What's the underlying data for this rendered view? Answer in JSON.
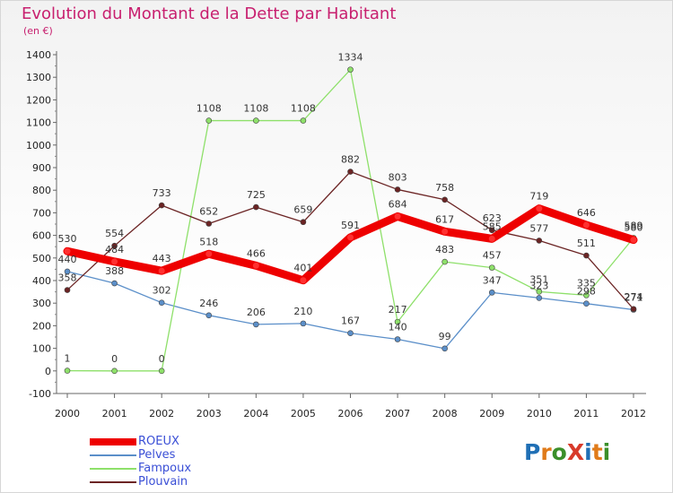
{
  "title": "Evolution du Montant de la Dette par Habitant",
  "subtitle": "(en €)",
  "logo_text": "ProXiti",
  "chart_data": {
    "type": "line",
    "title": "Evolution du Montant de la Dette par Habitant",
    "subtitle": "(en €)",
    "x": [
      "2000",
      "2001",
      "2002",
      "2003",
      "2004",
      "2005",
      "2006",
      "2007",
      "2008",
      "2009",
      "2010",
      "2011",
      "2012"
    ],
    "ylim": [
      -100,
      1400
    ],
    "yticks": [
      -100,
      0,
      100,
      200,
      300,
      400,
      500,
      600,
      700,
      800,
      900,
      1000,
      1100,
      1200,
      1300,
      1400
    ],
    "grid": false,
    "legend_position": "bottom-left",
    "series": [
      {
        "name": "ROEUX",
        "color": "#ee0000",
        "values": [
          530,
          484,
          443,
          518,
          466,
          401,
          591,
          684,
          617,
          585,
          719,
          646,
          580
        ]
      },
      {
        "name": "Pelves",
        "color": "#5b8fc9",
        "values": [
          440,
          388,
          302,
          246,
          206,
          210,
          167,
          140,
          99,
          347,
          323,
          298,
          271
        ]
      },
      {
        "name": "Fampoux",
        "color": "#8ee06a",
        "values": [
          1,
          0,
          0,
          1108,
          1108,
          1108,
          1334,
          217,
          483,
          457,
          351,
          335,
          589
        ]
      },
      {
        "name": "Plouvain",
        "color": "#6b2424",
        "values": [
          358,
          554,
          733,
          652,
          725,
          659,
          882,
          803,
          758,
          623,
          577,
          511,
          274
        ]
      }
    ]
  }
}
